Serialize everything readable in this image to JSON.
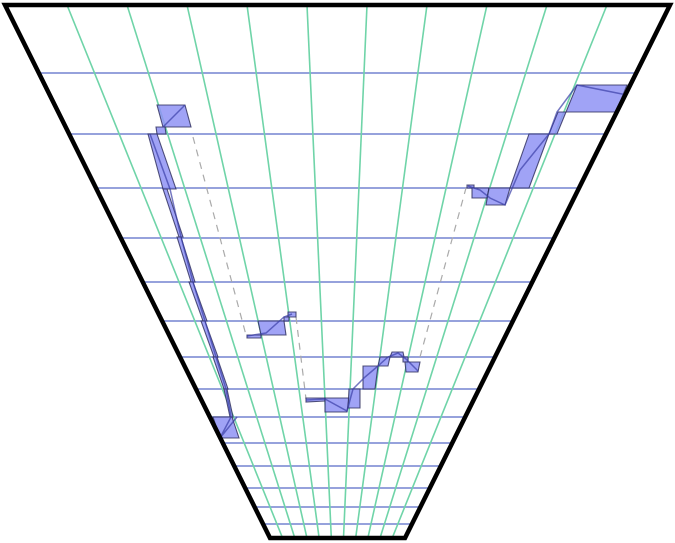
{
  "diagram": {
    "colors": {
      "frame": "#000000",
      "horizontal_grid": "#5a6fc8",
      "converging_grid": "#6fd4a8",
      "region_fill": "#8f93f5",
      "region_stroke": "#2a2a5a",
      "connector": "#aaaaaa"
    }
  }
}
